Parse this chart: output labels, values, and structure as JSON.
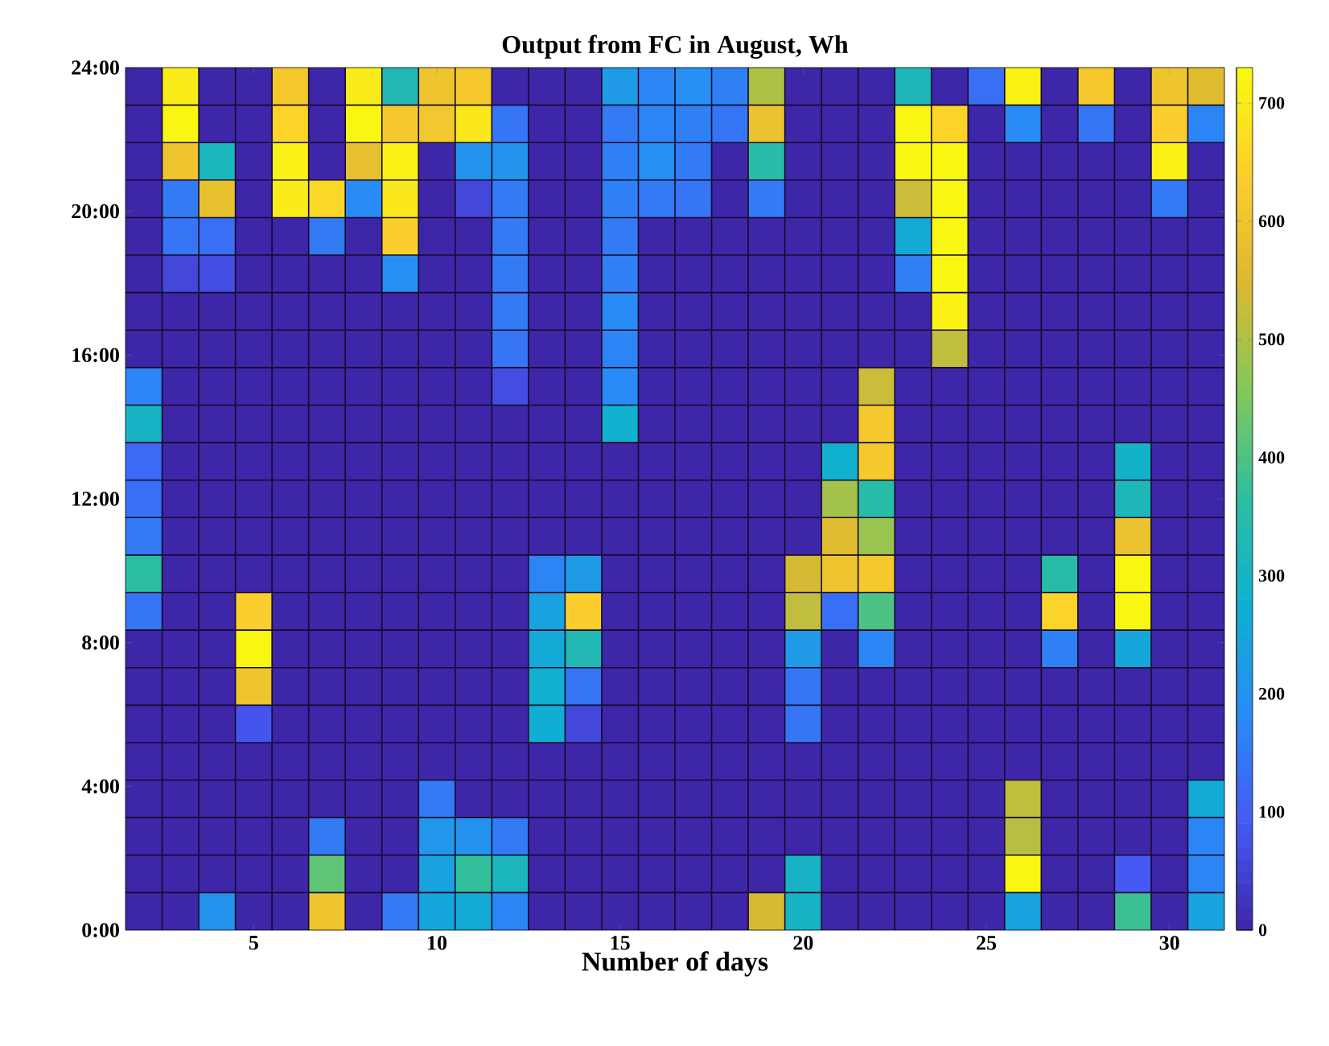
{
  "chart_data": {
    "type": "heatmap",
    "title": "Output from FC in August, Wh",
    "xlabel": "Number of days",
    "categories": [
      null,
      null,
      null,
      "5",
      null,
      null,
      null,
      null,
      "10",
      null,
      null,
      null,
      null,
      "15",
      null,
      null,
      null,
      null,
      "20",
      null,
      null,
      null,
      null,
      "25",
      null,
      null,
      null,
      null,
      "30",
      null
    ],
    "ylim": [
      0,
      24
    ],
    "yticks": [
      {
        "value": 0,
        "label": "0:00"
      },
      {
        "value": 4,
        "label": "4:00"
      },
      {
        "value": 8,
        "label": "8:00"
      },
      {
        "value": 12,
        "label": "12:00"
      },
      {
        "value": 16,
        "label": "16:00"
      },
      {
        "value": 20,
        "label": "20:00"
      },
      {
        "value": 24,
        "label": "24:00"
      }
    ],
    "clim": [
      0,
      730
    ],
    "cticks": [
      0,
      100,
      200,
      300,
      400,
      500,
      600,
      700
    ],
    "cells": [
      [
        0,
        700,
        0,
        0,
        620,
        0,
        700,
        330,
        600,
        620,
        0,
        0,
        0,
        220,
        170,
        190,
        160,
        500,
        0,
        0,
        0,
        320,
        0,
        130,
        710,
        0,
        620,
        0,
        600,
        560
      ],
      [
        0,
        720,
        0,
        0,
        650,
        0,
        720,
        620,
        610,
        690,
        140,
        0,
        0,
        150,
        170,
        160,
        140,
        590,
        0,
        0,
        0,
        720,
        650,
        0,
        180,
        0,
        140,
        0,
        640,
        170
      ],
      [
        0,
        600,
        310,
        0,
        710,
        0,
        580,
        710,
        0,
        200,
        200,
        0,
        0,
        160,
        190,
        150,
        0,
        350,
        0,
        0,
        0,
        720,
        720,
        0,
        0,
        0,
        0,
        0,
        710,
        0
      ],
      [
        0,
        150,
        580,
        0,
        700,
        660,
        180,
        690,
        0,
        60,
        150,
        0,
        0,
        160,
        150,
        140,
        0,
        150,
        0,
        0,
        0,
        530,
        720,
        0,
        0,
        0,
        0,
        0,
        150,
        0
      ],
      [
        0,
        140,
        130,
        0,
        0,
        150,
        0,
        640,
        0,
        0,
        150,
        0,
        0,
        150,
        0,
        0,
        0,
        0,
        0,
        0,
        0,
        260,
        720,
        0,
        0,
        0,
        0,
        0,
        0,
        0
      ],
      [
        0,
        60,
        70,
        0,
        0,
        0,
        0,
        190,
        0,
        0,
        150,
        0,
        0,
        160,
        0,
        0,
        0,
        0,
        0,
        0,
        0,
        160,
        720,
        0,
        0,
        0,
        0,
        0,
        0,
        0
      ],
      [
        0,
        0,
        0,
        0,
        0,
        0,
        0,
        0,
        0,
        0,
        150,
        0,
        0,
        180,
        0,
        0,
        0,
        0,
        0,
        0,
        0,
        0,
        710,
        0,
        0,
        0,
        0,
        0,
        0,
        0
      ],
      [
        0,
        0,
        0,
        0,
        0,
        0,
        0,
        0,
        0,
        0,
        140,
        0,
        0,
        170,
        0,
        0,
        0,
        0,
        0,
        0,
        0,
        0,
        520,
        0,
        0,
        0,
        0,
        0,
        0,
        0
      ],
      [
        170,
        0,
        0,
        0,
        0,
        0,
        0,
        0,
        0,
        0,
        70,
        0,
        0,
        180,
        0,
        0,
        0,
        0,
        0,
        0,
        530,
        0,
        0,
        0,
        0,
        0,
        0,
        0,
        0,
        0
      ],
      [
        300,
        0,
        0,
        0,
        0,
        0,
        0,
        0,
        0,
        0,
        0,
        0,
        0,
        280,
        0,
        0,
        0,
        0,
        0,
        0,
        620,
        0,
        0,
        0,
        0,
        0,
        0,
        0,
        0,
        0
      ],
      [
        120,
        0,
        0,
        0,
        0,
        0,
        0,
        0,
        0,
        0,
        0,
        0,
        0,
        0,
        0,
        0,
        0,
        0,
        0,
        280,
        620,
        0,
        0,
        0,
        0,
        0,
        0,
        290,
        0,
        0
      ],
      [
        130,
        0,
        0,
        0,
        0,
        0,
        0,
        0,
        0,
        0,
        0,
        0,
        0,
        0,
        0,
        0,
        0,
        0,
        0,
        490,
        350,
        0,
        0,
        0,
        0,
        0,
        0,
        320,
        0,
        0
      ],
      [
        150,
        0,
        0,
        0,
        0,
        0,
        0,
        0,
        0,
        0,
        0,
        0,
        0,
        0,
        0,
        0,
        0,
        0,
        0,
        560,
        480,
        0,
        0,
        0,
        0,
        0,
        0,
        590,
        0,
        0
      ],
      [
        360,
        0,
        0,
        0,
        0,
        0,
        0,
        0,
        0,
        0,
        0,
        170,
        220,
        0,
        0,
        0,
        0,
        0,
        540,
        600,
        620,
        0,
        0,
        0,
        0,
        350,
        0,
        720,
        0,
        0
      ],
      [
        140,
        0,
        0,
        640,
        0,
        0,
        0,
        0,
        0,
        0,
        0,
        240,
        640,
        0,
        0,
        0,
        0,
        0,
        520,
        130,
        400,
        0,
        0,
        0,
        0,
        650,
        0,
        720,
        0,
        0
      ],
      [
        0,
        0,
        0,
        720,
        0,
        0,
        0,
        0,
        0,
        0,
        0,
        260,
        330,
        0,
        0,
        0,
        0,
        0,
        220,
        0,
        170,
        0,
        0,
        0,
        0,
        160,
        0,
        250,
        0,
        0
      ],
      [
        0,
        0,
        0,
        600,
        0,
        0,
        0,
        0,
        0,
        0,
        0,
        280,
        140,
        0,
        0,
        0,
        0,
        0,
        140,
        0,
        0,
        0,
        0,
        0,
        0,
        0,
        0,
        0,
        0,
        0
      ],
      [
        0,
        0,
        0,
        80,
        0,
        0,
        0,
        0,
        0,
        0,
        0,
        270,
        60,
        0,
        0,
        0,
        0,
        0,
        140,
        0,
        0,
        0,
        0,
        0,
        0,
        0,
        0,
        0,
        0,
        0
      ],
      [
        0,
        0,
        0,
        0,
        0,
        0,
        0,
        0,
        0,
        0,
        0,
        0,
        0,
        0,
        0,
        0,
        0,
        0,
        0,
        0,
        0,
        0,
        0,
        0,
        0,
        0,
        0,
        0,
        0,
        0
      ],
      [
        0,
        0,
        0,
        0,
        0,
        0,
        0,
        0,
        150,
        0,
        0,
        0,
        0,
        0,
        0,
        0,
        0,
        0,
        0,
        0,
        0,
        0,
        0,
        0,
        520,
        0,
        0,
        0,
        0,
        260
      ],
      [
        0,
        0,
        0,
        0,
        0,
        150,
        0,
        0,
        210,
        200,
        150,
        0,
        0,
        0,
        0,
        0,
        0,
        0,
        0,
        0,
        0,
        0,
        0,
        0,
        510,
        0,
        0,
        0,
        0,
        170
      ],
      [
        0,
        0,
        0,
        0,
        0,
        420,
        0,
        0,
        240,
        370,
        310,
        0,
        0,
        0,
        0,
        0,
        0,
        0,
        300,
        0,
        0,
        0,
        0,
        0,
        720,
        0,
        0,
        90,
        0,
        170
      ],
      [
        0,
        0,
        200,
        0,
        0,
        600,
        0,
        150,
        250,
        260,
        170,
        0,
        0,
        0,
        0,
        0,
        0,
        540,
        300,
        0,
        0,
        0,
        0,
        0,
        240,
        0,
        0,
        380,
        0,
        240
      ]
    ]
  }
}
